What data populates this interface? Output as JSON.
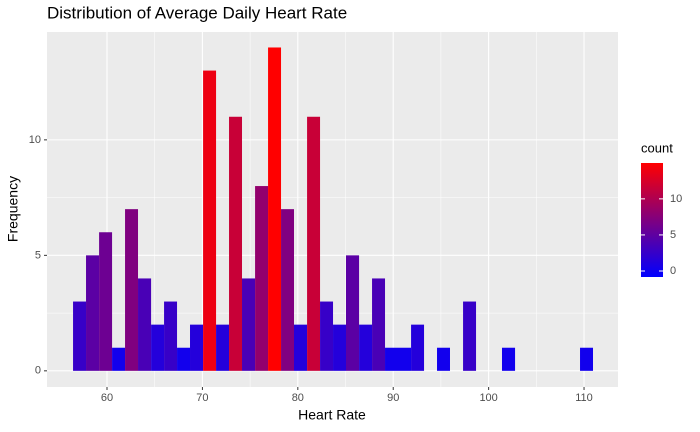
{
  "chart_data": {
    "type": "histogram",
    "title": "Distribution of Average Daily Heart Rate",
    "x_label": "Heart Rate",
    "y_label": "Frequency",
    "bins": [
      56.44,
      57.8,
      59.17,
      60.53,
      61.89,
      63.25,
      64.62,
      65.98,
      67.34,
      68.7,
      70.07,
      71.43,
      72.79,
      74.15,
      75.52,
      76.88,
      78.24,
      79.6,
      80.97,
      82.33,
      83.69,
      85.05,
      86.42,
      87.78,
      89.14,
      90.5,
      91.87,
      93.23,
      94.59,
      95.95,
      97.32,
      98.68,
      100.04,
      101.4,
      102.77,
      104.13,
      105.49,
      106.85,
      108.22,
      109.58,
      110.94
    ],
    "values": [
      3,
      5,
      6,
      1,
      7,
      4,
      2,
      3,
      1,
      2,
      13,
      2,
      11,
      4,
      8,
      14,
      7,
      2,
      11,
      3,
      2,
      5,
      2,
      4,
      1,
      1,
      2,
      0,
      1,
      0,
      3,
      0,
      0,
      1,
      0,
      0,
      0,
      0,
      0,
      1
    ],
    "xlim": [
      53.71,
      113.56
    ],
    "xticks": [
      60,
      70,
      80,
      90,
      100,
      110
    ],
    "ylim": [
      -0.7,
      14.67
    ],
    "yticks": [
      0,
      5,
      10
    ],
    "grid": true,
    "color_low": "#0000ff",
    "color_high": "#ff0000",
    "legend_title": "count",
    "legend_ticks": [
      0,
      5,
      10
    ]
  }
}
